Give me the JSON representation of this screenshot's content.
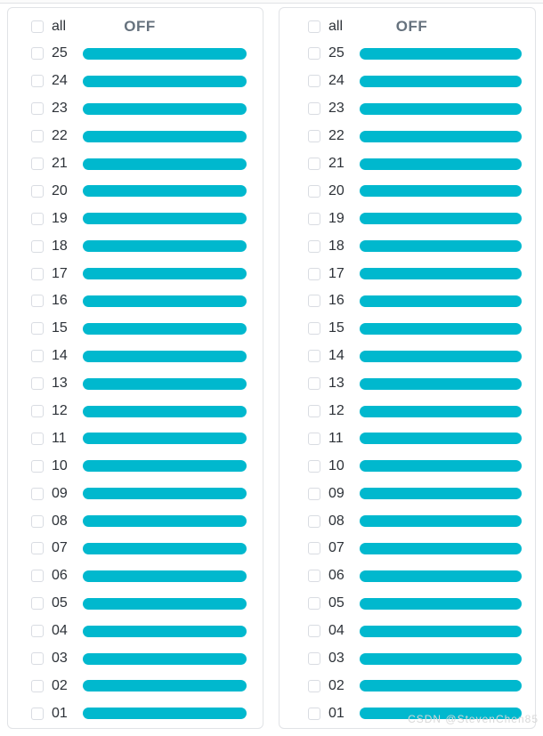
{
  "colors": {
    "bar": "#00b8ce",
    "card_border": "#e1e3e6",
    "checkbox_border": "#d9dce2",
    "text": "#2d3238",
    "status": "#66727e",
    "watermark": "#d8d8d8"
  },
  "panels": [
    {
      "header": {
        "all_label": "all",
        "status_label": "OFF"
      },
      "rows": [
        "25",
        "24",
        "23",
        "22",
        "21",
        "20",
        "19",
        "18",
        "17",
        "16",
        "15",
        "14",
        "13",
        "12",
        "11",
        "10",
        "09",
        "08",
        "07",
        "06",
        "05",
        "04",
        "03",
        "02",
        "01"
      ]
    },
    {
      "header": {
        "all_label": "all",
        "status_label": "OFF"
      },
      "rows": [
        "25",
        "24",
        "23",
        "22",
        "21",
        "20",
        "19",
        "18",
        "17",
        "16",
        "15",
        "14",
        "13",
        "12",
        "11",
        "10",
        "09",
        "08",
        "07",
        "06",
        "05",
        "04",
        "03",
        "02",
        "01"
      ]
    }
  ],
  "watermark": "CSDN @StevenChen85"
}
